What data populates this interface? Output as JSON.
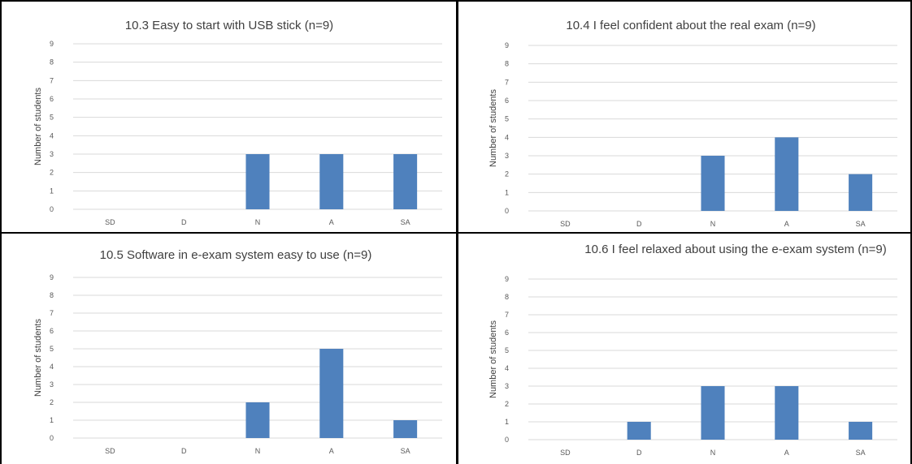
{
  "chart_data": [
    {
      "type": "bar",
      "title": "10.3 Easy to start with USB stick (n=9)",
      "ylabel": "Number of students",
      "xlabel": "",
      "categories": [
        "SD",
        "D",
        "N",
        "A",
        "SA"
      ],
      "values": [
        0,
        0,
        3,
        3,
        3
      ],
      "ylim": [
        0,
        9
      ],
      "yticks": [
        0,
        1,
        2,
        3,
        4,
        5,
        6,
        7,
        8,
        9
      ],
      "grid": true,
      "bar_color": "#4f81bd"
    },
    {
      "type": "bar",
      "title": "10.4 I feel confident about the real exam (n=9)",
      "ylabel": "Number of students",
      "xlabel": "",
      "categories": [
        "SD",
        "D",
        "N",
        "A",
        "SA"
      ],
      "values": [
        0,
        0,
        3,
        4,
        2
      ],
      "ylim": [
        0,
        9
      ],
      "yticks": [
        0,
        1,
        2,
        3,
        4,
        5,
        6,
        7,
        8,
        9
      ],
      "grid": true,
      "bar_color": "#4f81bd"
    },
    {
      "type": "bar",
      "title": "10.5 Software in e-exam system easy to use (n=9)",
      "ylabel": "Number of students",
      "xlabel": "",
      "categories": [
        "SD",
        "D",
        "N",
        "A",
        "SA"
      ],
      "values": [
        0,
        0,
        2,
        5,
        1
      ],
      "ylim": [
        0,
        9
      ],
      "yticks": [
        0,
        1,
        2,
        3,
        4,
        5,
        6,
        7,
        8,
        9
      ],
      "grid": true,
      "bar_color": "#4f81bd"
    },
    {
      "type": "bar",
      "title": "10.6 I feel relaxed about using the e-exam system (n=9)",
      "ylabel": "Number of students",
      "xlabel": "",
      "categories": [
        "SD",
        "D",
        "N",
        "A",
        "SA"
      ],
      "values": [
        0,
        1,
        3,
        3,
        1
      ],
      "ylim": [
        0,
        9
      ],
      "yticks": [
        0,
        1,
        2,
        3,
        4,
        5,
        6,
        7,
        8,
        9
      ],
      "grid": true,
      "bar_color": "#4f81bd"
    }
  ]
}
